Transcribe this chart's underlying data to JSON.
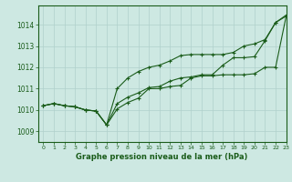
{
  "title": "Graphe pression niveau de la mer (hPa)",
  "bg_color": "#cde8e2",
  "line_color": "#1a5c1a",
  "grid_color": "#b0d0cc",
  "xlim": [
    -0.5,
    23
  ],
  "ylim": [
    1008.5,
    1014.9
  ],
  "yticks": [
    1009,
    1010,
    1011,
    1012,
    1013,
    1014
  ],
  "xticks": [
    0,
    1,
    2,
    3,
    4,
    5,
    6,
    7,
    8,
    9,
    10,
    11,
    12,
    13,
    14,
    15,
    16,
    17,
    18,
    19,
    20,
    21,
    22,
    23
  ],
  "series1": [
    1010.2,
    1010.3,
    1010.2,
    1010.15,
    1010.0,
    1009.95,
    1009.3,
    1010.05,
    1010.35,
    1010.55,
    1011.0,
    1011.0,
    1011.1,
    1011.15,
    1011.5,
    1011.6,
    1011.6,
    1011.65,
    1011.65,
    1011.65,
    1011.7,
    1012.0,
    1012.0,
    1014.4
  ],
  "series2": [
    1010.2,
    1010.3,
    1010.2,
    1010.15,
    1010.0,
    1009.95,
    1009.3,
    1010.3,
    1010.6,
    1010.8,
    1011.05,
    1011.1,
    1011.35,
    1011.5,
    1011.55,
    1011.65,
    1011.65,
    1012.1,
    1012.45,
    1012.45,
    1012.5,
    1013.25,
    1014.1,
    1014.4
  ],
  "series3": [
    1010.2,
    1010.3,
    1010.2,
    1010.15,
    1010.0,
    1009.95,
    1009.3,
    1011.0,
    1011.5,
    1011.8,
    1012.0,
    1012.1,
    1012.3,
    1012.55,
    1012.6,
    1012.6,
    1012.6,
    1012.6,
    1012.7,
    1013.0,
    1013.1,
    1013.3,
    1014.1,
    1014.45
  ]
}
